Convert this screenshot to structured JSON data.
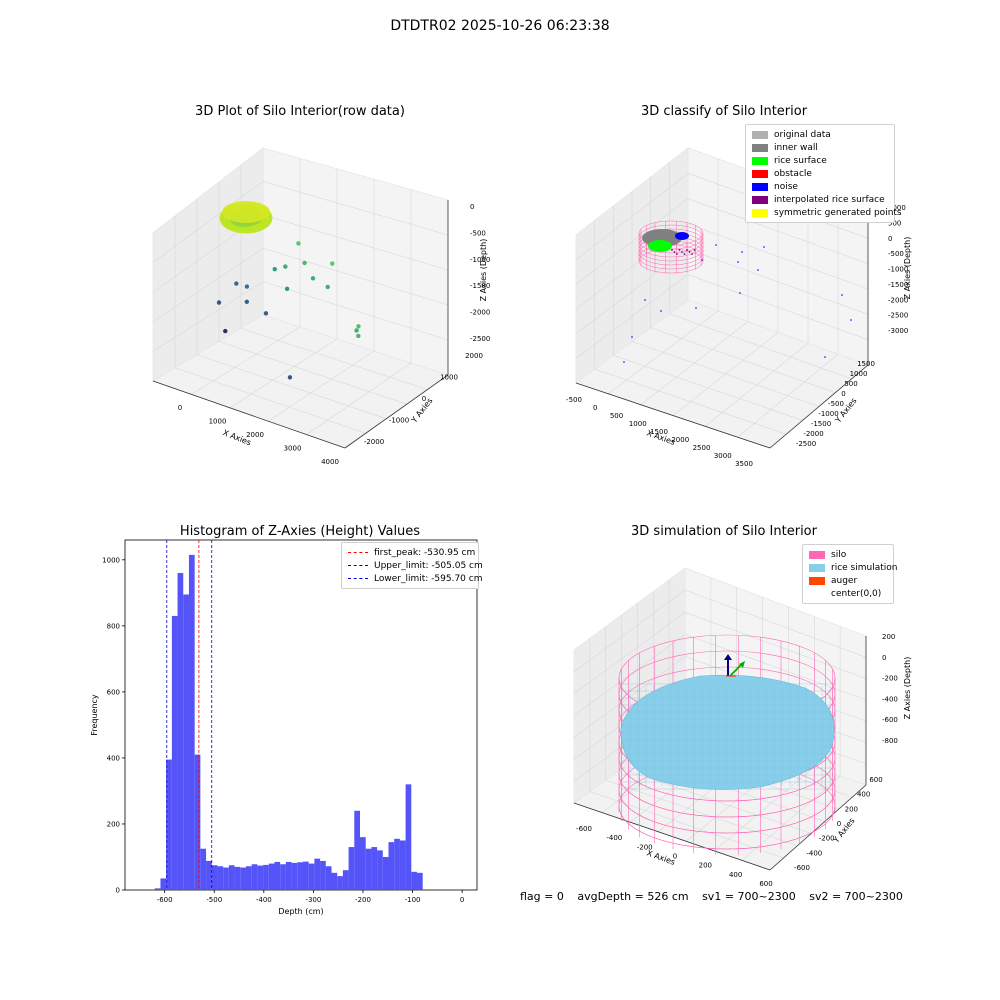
{
  "suptitle": "DTDTR02 2025-10-26 06:23:38",
  "footer": {
    "flag": "flag = 0",
    "avg_depth": "avgDepth = 526 cm",
    "sv1": "sv1 = 700~2300",
    "sv2": "sv2 = 700~2300"
  },
  "colors": {
    "histogram_bar": "#4b4bf8",
    "first_peak_line": "#ff0000",
    "limit_lines": "#0000cc",
    "silo_wire": "#ff69b4",
    "rice": "#87ceeb",
    "auger": "#ff4500"
  },
  "chart_data": [
    {
      "type": "scatter",
      "panel": "3d-raw",
      "title": "3D Plot of Silo Interior(row data)",
      "xlabel": "X Axies",
      "ylabel": "Y Axies",
      "zlabel": "Z Axies (Depth)",
      "xticks": [
        "0",
        "1000",
        "2000",
        "3000",
        "4000"
      ],
      "yticks": [
        "-2000",
        "-1000",
        "0",
        "1000",
        "2000"
      ],
      "zticks": [
        "0",
        "-500",
        "-1000",
        "-1500",
        "-2000",
        "-2500"
      ],
      "xlim": [
        -500,
        4000
      ],
      "ylim": [
        -2500,
        2500
      ],
      "zlim": [
        -2700,
        0
      ],
      "colormap": "viridis",
      "points": [
        {
          "x": -500,
          "y": 500,
          "z": -2000
        },
        {
          "x": -300,
          "y": 900,
          "z": -1700
        },
        {
          "x": 0,
          "y": 800,
          "z": -1650
        },
        {
          "x": 100,
          "y": 600,
          "z": -1850
        },
        {
          "x": 600,
          "y": 500,
          "z": -1900
        },
        {
          "x": -250,
          "y": 300,
          "z": -2400
        },
        {
          "x": 1200,
          "y": 300,
          "z": -1250
        },
        {
          "x": 2100,
          "y": 400,
          "z": -1000
        },
        {
          "x": 3600,
          "y": -1200,
          "z": -1000
        },
        {
          "x": 3800,
          "y": -1500,
          "z": -800
        },
        {
          "x": 3900,
          "y": -1700,
          "z": -900
        },
        {
          "x": 2400,
          "y": -1900,
          "z": -2000
        },
        {
          "x": 600,
          "y": 900,
          "z": -1200
        },
        {
          "x": 900,
          "y": 800,
          "z": -1050
        },
        {
          "x": 1600,
          "y": 700,
          "z": -1050
        },
        {
          "x": 1300,
          "y": 900,
          "z": -900
        },
        {
          "x": 1000,
          "y": 1200,
          "z": -700
        },
        {
          "x": 2000,
          "y": 800,
          "z": -700
        }
      ]
    },
    {
      "type": "scatter",
      "panel": "3d-classify",
      "title": "3D classify of Silo Interior",
      "xlabel": "X Axies",
      "ylabel": "Y Axies",
      "zlabel": "Z Axies (Depth)",
      "xticks": [
        "-500",
        "0",
        "500",
        "1000",
        "1500",
        "2000",
        "2500",
        "3000",
        "3500"
      ],
      "yticks": [
        "-2500",
        "-2000",
        "-1500",
        "-1000",
        "-500",
        "0",
        "500",
        "1000",
        "1500"
      ],
      "zticks": [
        "1000",
        "500",
        "0",
        "-500",
        "-1000",
        "-1500",
        "-2000",
        "-2500",
        "-3000"
      ],
      "legend": [
        {
          "label": "original data",
          "color": "#b0b0b0"
        },
        {
          "label": "inner wall",
          "color": "#808080"
        },
        {
          "label": "rice surface",
          "color": "#00ff00"
        },
        {
          "label": "obstacle",
          "color": "#ff0000"
        },
        {
          "label": "noise",
          "color": "#0000ff"
        },
        {
          "label": "interpolated rice surface",
          "color": "#800080"
        },
        {
          "label": "symmetric generated points",
          "color": "#ffff00"
        }
      ]
    },
    {
      "type": "bar",
      "panel": "histogram",
      "title": "Histogram of Z-Axies (Height) Values",
      "xlabel": "Depth (cm)",
      "ylabel": "Frequency",
      "xlim": [
        -680,
        30
      ],
      "ylim": [
        0,
        1060
      ],
      "xticks": [
        -600,
        -500,
        -400,
        -300,
        -200,
        -100,
        0
      ],
      "yticks": [
        0,
        200,
        400,
        600,
        800,
        1000
      ],
      "bin_start": -620,
      "bin_width": 11.5,
      "values": [
        5,
        35,
        395,
        830,
        960,
        895,
        1015,
        410,
        125,
        88,
        75,
        72,
        68,
        75,
        70,
        68,
        72,
        78,
        74,
        76,
        80,
        85,
        78,
        85,
        82,
        84,
        86,
        80,
        95,
        88,
        72,
        52,
        42,
        60,
        130,
        240,
        160,
        125,
        130,
        120,
        100,
        145,
        155,
        150,
        320,
        55,
        52
      ],
      "lines": [
        {
          "label": "first_peak: -530.95 cm",
          "x": -530.95,
          "color": "#ff0000"
        },
        {
          "label": "Upper_limit: -505.05 cm",
          "x": -505.05,
          "color": "#0000cc"
        },
        {
          "label": "Lower_limit: -595.70 cm",
          "x": -595.7,
          "color": "#0000cc"
        }
      ]
    },
    {
      "type": "area",
      "panel": "3d-simulation",
      "title": "3D simulation of Silo Interior",
      "xlabel": "X Axies",
      "ylabel": "Y Axies",
      "zlabel": "Z Axies (Depth)",
      "xticks": [
        "-600",
        "-400",
        "-200",
        "0",
        "200",
        "400",
        "600"
      ],
      "yticks": [
        "-600",
        "-400",
        "-200",
        "0",
        "200",
        "400",
        "600"
      ],
      "zticks": [
        "200",
        "0",
        "-200",
        "-400",
        "-600",
        "-800"
      ],
      "legend": [
        {
          "label": "silo",
          "color": "#ff69b4"
        },
        {
          "label": "rice simulation",
          "color": "#87ceeb"
        },
        {
          "label": "auger",
          "color": "#ff4500"
        },
        {
          "label": "center(0,0)",
          "color": ""
        }
      ]
    }
  ]
}
